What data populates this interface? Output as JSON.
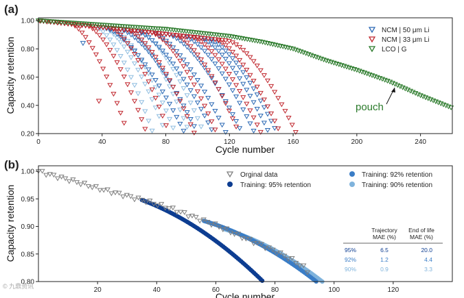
{
  "colors": {
    "ncm50": "#2a68b4",
    "ncm33": "#c0262d",
    "lco": "#2a7a2a",
    "orig": "#7f7f7f",
    "train95": "#0d3d91",
    "train92": "#3a7dc6",
    "train90": "#7fb3dc",
    "ncm50_light": "#8fbde0"
  },
  "chart_data": [
    {
      "panel": "(a)",
      "type": "scatter",
      "xlabel": "Cycle number",
      "ylabel": "Capacity retention",
      "xlim": [
        0,
        260
      ],
      "ylim": [
        0.2,
        1.02
      ],
      "xticks": [
        0,
        40,
        80,
        120,
        160,
        200,
        240
      ],
      "yticks": [
        0.2,
        0.4,
        0.6,
        0.8,
        1.0
      ],
      "xtick_labels": [
        "0",
        "40",
        "80",
        "120",
        "160",
        "200",
        "240"
      ],
      "ytick_labels": [
        "0.20",
        "0.40",
        "0.60",
        "0.80",
        "1.00"
      ],
      "legend": [
        "NCM | 50 μm Li",
        "NCM | 33 μm Li",
        "LCO | G"
      ],
      "legend_position": "top-right",
      "annotation": "pouch",
      "series": [
        {
          "name": "NCM | 50 μm Li",
          "style": "blue",
          "curves": [
            {
              "eol": 92,
              "knee": 40
            },
            {
              "eol": 100,
              "knee": 50
            },
            {
              "eol": 110,
              "knee": 60
            },
            {
              "eol": 118,
              "knee": 70
            },
            {
              "eol": 128,
              "knee": 80
            },
            {
              "eol": 136,
              "knee": 90
            },
            {
              "eol": 145,
              "knee": 100
            },
            {
              "eol": 150,
              "knee": 105
            }
          ]
        },
        {
          "name": "NCM | 50 μm Li (light)",
          "style": "lightblue",
          "curves": [
            {
              "eol": 72,
              "knee": 35
            },
            {
              "eol": 80,
              "knee": 40
            },
            {
              "eol": 86,
              "knee": 45
            },
            {
              "eol": 95,
              "knee": 55
            },
            {
              "eol": 104,
              "knee": 62
            }
          ]
        },
        {
          "name": "NCM | 33 μm Li",
          "style": "red",
          "curves": [
            {
              "eol": 56,
              "knee": 20
            },
            {
              "eol": 68,
              "knee": 30
            },
            {
              "eol": 82,
              "knee": 45
            },
            {
              "eol": 98,
              "knee": 55
            },
            {
              "eol": 112,
              "knee": 70
            },
            {
              "eol": 126,
              "knee": 85
            },
            {
              "eol": 140,
              "knee": 95
            },
            {
              "eol": 152,
              "knee": 110
            },
            {
              "eol": 162,
              "knee": 118
            }
          ]
        },
        {
          "name": "LCO | G",
          "style": "green",
          "curve": {
            "x": [
              0,
              20,
              40,
              60,
              80,
              100,
              120,
              140,
              160,
              180,
              200,
              220,
              240,
              260
            ],
            "y": [
              1.0,
              0.985,
              0.97,
              0.955,
              0.94,
              0.915,
              0.89,
              0.85,
              0.8,
              0.72,
              0.65,
              0.57,
              0.47,
              0.38
            ]
          }
        }
      ],
      "outliers": [
        {
          "series": "NCM | 33 μm Li",
          "x": 38,
          "y": 0.43
        },
        {
          "series": "NCM | 50 μm Li",
          "x": 28,
          "y": 0.84
        }
      ]
    },
    {
      "panel": "(b)",
      "type": "scatter",
      "xlabel": "Cycle number",
      "ylabel": "Capacity retention",
      "xlim": [
        0,
        140
      ],
      "ylim": [
        0.8,
        1.01
      ],
      "xticks": [
        20,
        40,
        60,
        80,
        100,
        120
      ],
      "yticks": [
        0.8,
        0.85,
        0.9,
        0.95,
        1.0
      ],
      "xtick_labels": [
        "20",
        "40",
        "60",
        "80",
        "100",
        "120"
      ],
      "ytick_labels": [
        "0.80",
        "0.85",
        "0.90",
        "0.95",
        "1.00"
      ],
      "legend": [
        "Orginal data",
        "Training: 95% retention",
        "Training: 92% retention",
        "Training: 90% retention"
      ],
      "original_data": {
        "x": [
          0,
          5,
          10,
          15,
          20,
          25,
          30,
          35,
          40,
          45,
          50,
          55,
          60,
          65,
          70,
          75,
          80,
          85,
          90,
          92
        ],
        "y": [
          1.0,
          0.992,
          0.985,
          0.977,
          0.969,
          0.962,
          0.955,
          0.948,
          0.94,
          0.932,
          0.922,
          0.912,
          0.902,
          0.89,
          0.878,
          0.867,
          0.855,
          0.842,
          0.825,
          0.812
        ]
      },
      "predictions": [
        {
          "name": "Training: 95% retention",
          "start": 35,
          "end_x": 76,
          "end_y": 0.8
        },
        {
          "name": "Training: 92% retention",
          "start": 56,
          "end_x": 94,
          "end_y": 0.8
        },
        {
          "name": "Training: 90% retention",
          "start": 63,
          "end_x": 96,
          "end_y": 0.8
        }
      ],
      "table": {
        "headers": [
          "",
          "Trajectory\nMAE (%)",
          "End of life\nMAE (%)"
        ],
        "rows": [
          {
            "label": "95%",
            "traj": "6.5",
            "eol": "20.0"
          },
          {
            "label": "92%",
            "traj": "1.2",
            "eol": "4.4"
          },
          {
            "label": "90%",
            "traj": "0.9",
            "eol": "3.3"
          }
        ]
      }
    }
  ],
  "texts": {
    "panel_a": "(a)",
    "panel_b": "(b)",
    "xlabel_a": "Cycle number",
    "xlabel_b": "Cycle number",
    "ylabel_a": "Capacity retention",
    "ylabel_b": "Capacity retention",
    "pouch": "pouch",
    "leg_a_1": "NCM | 50 μm Li",
    "leg_a_2": "NCM | 33 μm Li",
    "leg_a_3": "LCO | G",
    "leg_b_1": "Orginal data",
    "leg_b_2": "Training: 95% retention",
    "leg_b_3": "Training: 92% retention",
    "leg_b_4": "Training: 90% retention",
    "tbl_h1a": "Trajectory",
    "tbl_h1b": "MAE (%)",
    "tbl_h2a": "End of life",
    "tbl_h2b": "MAE (%)",
    "tbl_r1_label": "95%",
    "tbl_r1_traj": "6.5",
    "tbl_r1_eol": "20.0",
    "tbl_r2_label": "92%",
    "tbl_r2_traj": "1.2",
    "tbl_r2_eol": "4.4",
    "tbl_r3_label": "90%",
    "tbl_r3_traj": "0.9",
    "tbl_r3_eol": "3.3",
    "watermark": "© 九鼎资讯"
  }
}
